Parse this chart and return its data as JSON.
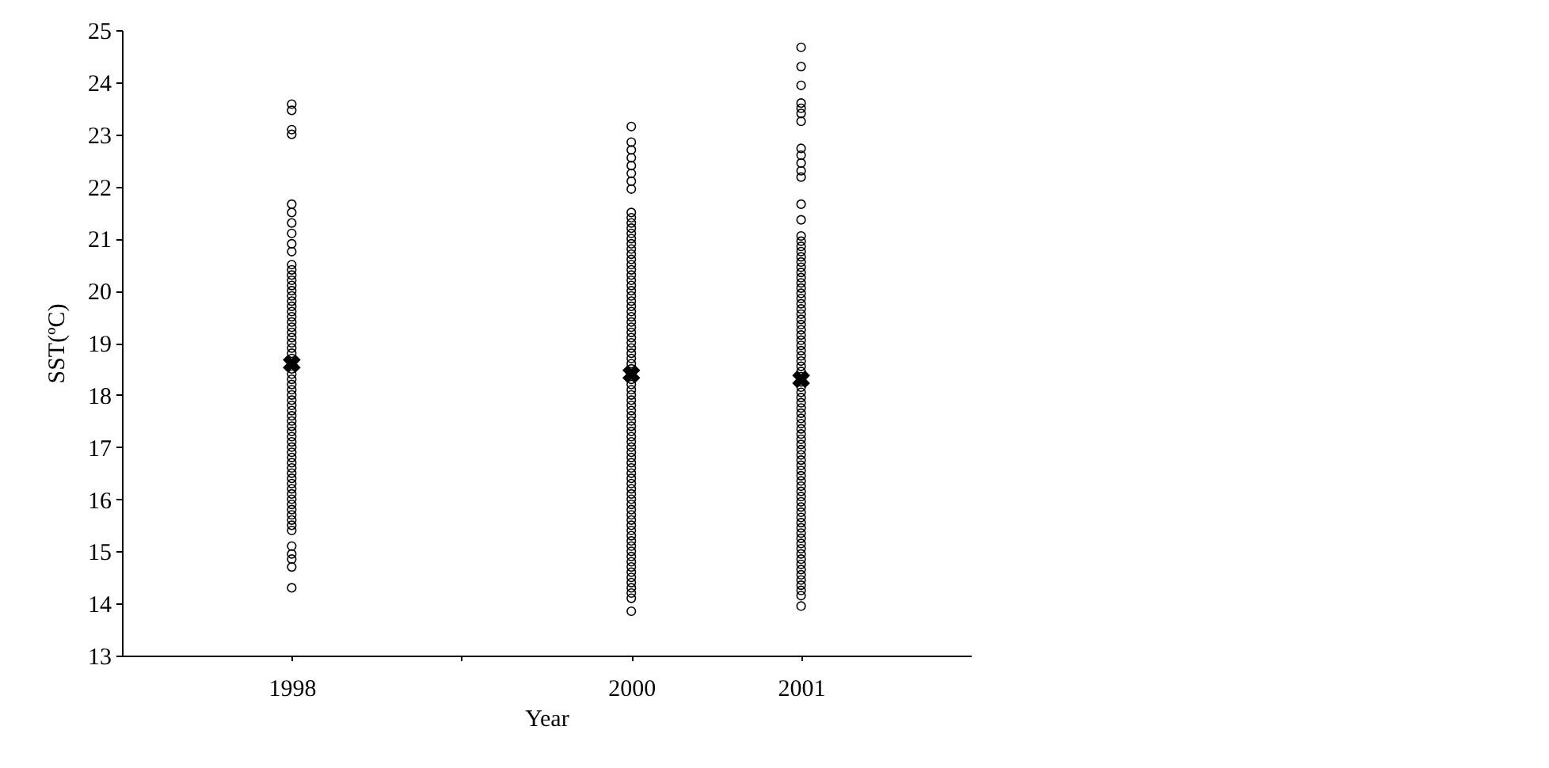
{
  "chart_data": {
    "type": "scatter",
    "xlabel": "Year",
    "ylabel": "SST(ºC)",
    "xlim": [
      1997,
      2002
    ],
    "xticks": [
      1998,
      {
        "value": 1999,
        "label": null
      },
      2000,
      2001
    ],
    "ylim": [
      13,
      25
    ],
    "yticks": [
      13,
      14,
      15,
      16,
      17,
      18,
      19,
      20,
      21,
      22,
      23,
      24,
      25
    ],
    "grid": false,
    "marker": "circle",
    "series": [
      {
        "color": "#000000",
        "x": [
          1998,
          1998,
          1998,
          1998,
          1998,
          1998,
          1998,
          1998,
          1998,
          1998,
          1998,
          1998,
          1998,
          1998,
          1998,
          1998,
          1998,
          1998,
          1998,
          1998,
          1998,
          1998,
          1998,
          1998,
          1998,
          1998,
          1998,
          1998,
          1998,
          1998,
          1998,
          1998,
          1998,
          1998,
          1998,
          1998,
          1998,
          1998,
          1998,
          1998,
          1998,
          1998,
          1998,
          1998,
          1998,
          1998,
          1998,
          1998,
          1998,
          1998,
          1998,
          1998,
          1998,
          1998,
          1998,
          1998,
          1998,
          1998,
          1998,
          1998,
          1998,
          1998,
          1998,
          1998,
          1998,
          1998
        ],
        "values": [
          23.58,
          23.46,
          23.09,
          23.0,
          21.66,
          21.5,
          21.3,
          21.1,
          20.9,
          20.75,
          20.5,
          20.4,
          20.3,
          20.2,
          20.1,
          20.0,
          19.9,
          19.8,
          19.7,
          19.6,
          19.5,
          19.4,
          19.3,
          19.2,
          19.1,
          19.0,
          18.9,
          18.8,
          18.7,
          18.5,
          18.4,
          18.3,
          18.2,
          18.1,
          18.0,
          17.9,
          17.8,
          17.7,
          17.6,
          17.5,
          17.4,
          17.3,
          17.2,
          17.1,
          17.0,
          16.9,
          16.8,
          16.7,
          16.6,
          16.5,
          16.4,
          16.3,
          16.2,
          16.1,
          16.0,
          15.9,
          15.8,
          15.7,
          15.6,
          15.5,
          15.4,
          15.1,
          14.95,
          14.85,
          14.7,
          14.3
        ]
      },
      {
        "color": "#000000",
        "x": [
          2000,
          2000,
          2000,
          2000,
          2000,
          2000,
          2000,
          2000,
          2000,
          2000,
          2000,
          2000,
          2000,
          2000,
          2000,
          2000,
          2000,
          2000,
          2000,
          2000,
          2000,
          2000,
          2000,
          2000,
          2000,
          2000,
          2000,
          2000,
          2000,
          2000,
          2000,
          2000,
          2000,
          2000,
          2000,
          2000,
          2000,
          2000,
          2000,
          2000,
          2000,
          2000,
          2000,
          2000,
          2000,
          2000,
          2000,
          2000,
          2000,
          2000,
          2000,
          2000,
          2000,
          2000,
          2000,
          2000,
          2000,
          2000,
          2000,
          2000,
          2000,
          2000,
          2000,
          2000,
          2000,
          2000,
          2000,
          2000,
          2000,
          2000,
          2000,
          2000,
          2000,
          2000,
          2000,
          2000,
          2000,
          2000,
          2000,
          2000,
          2000,
          2000,
          2000
        ],
        "values": [
          23.15,
          22.85,
          22.7,
          22.55,
          22.4,
          22.25,
          22.1,
          21.95,
          21.5,
          21.4,
          21.3,
          21.2,
          21.1,
          21.0,
          20.9,
          20.8,
          20.7,
          20.6,
          20.5,
          20.4,
          20.3,
          20.2,
          20.1,
          20.0,
          19.9,
          19.8,
          19.7,
          19.6,
          19.5,
          19.4,
          19.3,
          19.2,
          19.1,
          19.0,
          18.9,
          18.8,
          18.7,
          18.6,
          18.5,
          18.3,
          18.2,
          18.1,
          18.0,
          17.9,
          17.8,
          17.7,
          17.6,
          17.5,
          17.4,
          17.3,
          17.2,
          17.1,
          17.0,
          16.9,
          16.8,
          16.7,
          16.6,
          16.5,
          16.4,
          16.3,
          16.2,
          16.1,
          16.0,
          15.9,
          15.8,
          15.7,
          15.6,
          15.5,
          15.4,
          15.3,
          15.2,
          15.1,
          15.0,
          14.9,
          14.8,
          14.7,
          14.6,
          14.5,
          14.4,
          14.3,
          14.2,
          14.1,
          13.85
        ]
      },
      {
        "color": "#000000",
        "x": [
          2001,
          2001,
          2001,
          2001,
          2001,
          2001,
          2001,
          2001,
          2001,
          2001,
          2001,
          2001,
          2001,
          2001,
          2001,
          2001,
          2001,
          2001,
          2001,
          2001,
          2001,
          2001,
          2001,
          2001,
          2001,
          2001,
          2001,
          2001,
          2001,
          2001,
          2001,
          2001,
          2001,
          2001,
          2001,
          2001,
          2001,
          2001,
          2001,
          2001,
          2001,
          2001,
          2001,
          2001,
          2001,
          2001,
          2001,
          2001,
          2001,
          2001,
          2001,
          2001,
          2001,
          2001,
          2001,
          2001,
          2001,
          2001,
          2001,
          2001,
          2001,
          2001,
          2001,
          2001,
          2001,
          2001,
          2001,
          2001,
          2001,
          2001,
          2001,
          2001,
          2001,
          2001,
          2001,
          2001,
          2001,
          2001,
          2001,
          2001,
          2001,
          2001,
          2001,
          2001,
          2001
        ],
        "values": [
          24.67,
          24.3,
          23.94,
          23.6,
          23.5,
          23.4,
          23.25,
          22.73,
          22.6,
          22.45,
          22.3,
          22.18,
          21.66,
          21.36,
          21.05,
          20.95,
          20.85,
          20.75,
          20.65,
          20.55,
          20.45,
          20.35,
          20.25,
          20.15,
          20.05,
          19.95,
          19.85,
          19.75,
          19.65,
          19.55,
          19.45,
          19.35,
          19.25,
          19.15,
          19.05,
          18.95,
          18.85,
          18.75,
          18.65,
          18.55,
          18.45,
          18.35,
          18.25,
          18.15,
          18.05,
          17.95,
          17.85,
          17.75,
          17.65,
          17.55,
          17.45,
          17.35,
          17.25,
          17.15,
          17.05,
          16.95,
          16.85,
          16.75,
          16.65,
          16.55,
          16.45,
          16.35,
          16.25,
          16.15,
          16.05,
          15.95,
          15.85,
          15.75,
          15.65,
          15.55,
          15.45,
          15.35,
          15.25,
          15.15,
          15.05,
          14.95,
          14.85,
          14.75,
          14.65,
          14.55,
          14.45,
          14.35,
          14.25,
          14.15,
          13.95
        ]
      },
      {
        "color": "#000000",
        "marker": "cross",
        "x": [
          1998,
          2000,
          2001
        ],
        "values": [
          18.6,
          18.4,
          18.3
        ]
      }
    ]
  }
}
